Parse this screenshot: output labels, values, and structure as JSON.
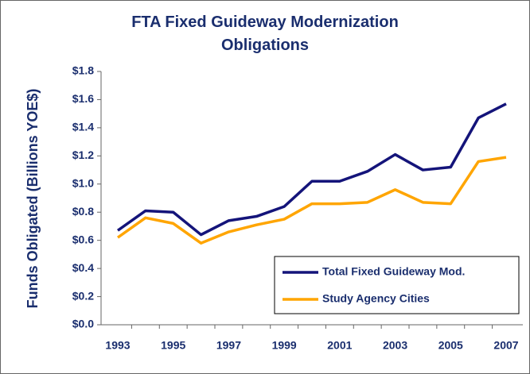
{
  "chart_data": {
    "type": "line",
    "title": "FTA Fixed Guideway Modernization Obligations",
    "y_label": "Funds Obligated (Billions YOE$)",
    "categories": [
      "1993",
      null,
      "1995",
      null,
      "1997",
      null,
      "1999",
      null,
      "2001",
      null,
      "2003",
      null,
      "2005",
      null,
      "2007"
    ],
    "series": [
      {
        "name": "Total Fixed Guideway Mod.",
        "color": "#14147a",
        "values": [
          0.67,
          0.81,
          0.8,
          0.64,
          0.74,
          0.77,
          0.84,
          1.02,
          1.02,
          1.09,
          1.21,
          1.1,
          1.12,
          1.47,
          1.57
        ]
      },
      {
        "name": "Study Agency Cities",
        "color": "#ffa500",
        "values": [
          0.62,
          0.76,
          0.72,
          0.58,
          0.66,
          0.71,
          0.75,
          0.86,
          0.86,
          0.87,
          0.96,
          0.87,
          0.86,
          1.16,
          1.19
        ]
      }
    ],
    "ylim": [
      0,
      1.8
    ],
    "yticks": [
      {
        "value": 0,
        "label": "$0.0"
      },
      {
        "value": 0.2,
        "label": "$0.2"
      },
      {
        "value": 0.4,
        "label": "$0.4"
      },
      {
        "value": 0.6,
        "label": "$0.6"
      },
      {
        "value": 0.8,
        "label": "$0.8"
      },
      {
        "value": 1.0,
        "label": "$1.0"
      },
      {
        "value": 1.2,
        "label": "$1.2"
      },
      {
        "value": 1.4,
        "label": "$1.4"
      },
      {
        "value": 1.6,
        "label": "$1.6"
      },
      {
        "value": 1.8,
        "label": "$1.8"
      }
    ],
    "legend": "lower right"
  }
}
